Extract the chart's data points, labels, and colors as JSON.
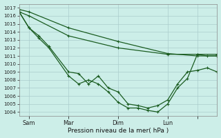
{
  "bg_color": "#cceee8",
  "grid_color": "#aacccc",
  "line_color": "#1a5c20",
  "xlabel": "Pression niveau de la mer( hPa )",
  "ylim": [
    1003.5,
    1017.5
  ],
  "yticks": [
    1004,
    1005,
    1006,
    1007,
    1008,
    1009,
    1010,
    1011,
    1012,
    1013,
    1014,
    1015,
    1016,
    1017
  ],
  "xlim": [
    0,
    240
  ],
  "xtick_positions": [
    12,
    60,
    120,
    180,
    216
  ],
  "xtick_labels": [
    "Sam",
    "Mar",
    "Dim",
    "Lun",
    ""
  ],
  "line_straight1_x": [
    0,
    12,
    60,
    120,
    180,
    216,
    240
  ],
  "line_straight1_y": [
    1016.8,
    1016.5,
    1014.5,
    1012.8,
    1011.3,
    1011.0,
    1011.0
  ],
  "line_straight2_x": [
    0,
    12,
    60,
    120,
    180,
    216,
    240
  ],
  "line_straight2_y": [
    1016.5,
    1016.0,
    1013.5,
    1012.0,
    1011.2,
    1011.2,
    1011.2
  ],
  "line_deep1_x": [
    0,
    12,
    24,
    36,
    60,
    72,
    84,
    96,
    108,
    120,
    132,
    144,
    156,
    168,
    180,
    192,
    204,
    216,
    228,
    240
  ],
  "line_deep1_y": [
    1016.5,
    1014.5,
    1013.5,
    1012.2,
    1009.0,
    1008.8,
    1007.5,
    1008.5,
    1007.0,
    1006.5,
    1005.0,
    1004.8,
    1004.5,
    1004.8,
    1005.5,
    1007.5,
    1009.0,
    1009.2,
    1009.5,
    1009.0
  ],
  "line_deep2_x": [
    0,
    12,
    24,
    36,
    60,
    72,
    84,
    96,
    108,
    120,
    132,
    144,
    156,
    168,
    180,
    192,
    204,
    216,
    228,
    240
  ],
  "line_deep2_y": [
    1016.5,
    1014.5,
    1013.2,
    1012.0,
    1008.5,
    1007.5,
    1008.0,
    1007.5,
    1006.5,
    1005.2,
    1004.5,
    1004.5,
    1004.2,
    1004.0,
    1005.0,
    1007.0,
    1008.2,
    1011.2,
    1011.0,
    1011.0
  ]
}
